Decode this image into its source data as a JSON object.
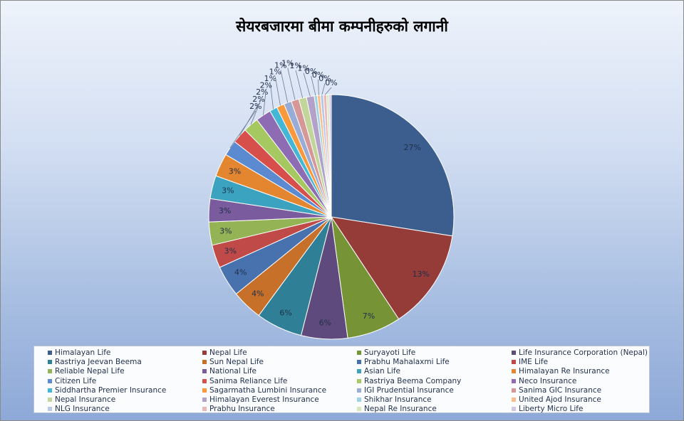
{
  "chart_data": {
    "type": "pie",
    "title": "सेयरबजारमा बीमा कम्पनीहरुको लगानी",
    "legend_position": "bottom",
    "slices": [
      {
        "name": "Himalayan Life",
        "value": 27,
        "label": "27%",
        "color": "#3b5e8e"
      },
      {
        "name": "Nepal Life",
        "value": 13,
        "label": "13%",
        "color": "#953b38"
      },
      {
        "name": "Suryayoti Life",
        "value": 7,
        "label": "7%",
        "color": "#769335"
      },
      {
        "name": "Life Insurance Corporation (Nepal)",
        "value": 6,
        "label": "6%",
        "color": "#5e4a7c"
      },
      {
        "name": "Rastriya Jeevan Beema",
        "value": 6,
        "label": "6%",
        "color": "#2f8097"
      },
      {
        "name": "Sun Nepal Life",
        "value": 4,
        "label": "4%",
        "color": "#c6702a"
      },
      {
        "name": "Prabhu Mahalaxmi Life",
        "value": 4,
        "label": "4%",
        "color": "#4872ae"
      },
      {
        "name": "IME Life",
        "value": 3,
        "label": "3%",
        "color": "#c04a47"
      },
      {
        "name": "Reliable Nepal Life",
        "value": 3,
        "label": "3%",
        "color": "#94b354"
      },
      {
        "name": "National Life",
        "value": 3,
        "label": "3%",
        "color": "#7a5c9e"
      },
      {
        "name": "Asian Life",
        "value": 3,
        "label": "3%",
        "color": "#3ba3bf"
      },
      {
        "name": "Himalayan Re Insurance",
        "value": 3,
        "label": "3%",
        "color": "#e4862f"
      },
      {
        "name": "Citizen Life",
        "value": 2,
        "label": "2%",
        "color": "#5c8ad0"
      },
      {
        "name": "Sanima Reliance Life",
        "value": 2,
        "label": "2%",
        "color": "#d64f4b"
      },
      {
        "name": "Rastriya Beema Company",
        "value": 2,
        "label": "2%",
        "color": "#a6c860"
      },
      {
        "name": "Neco Insurance",
        "value": 2,
        "label": "2%",
        "color": "#8d6cb4"
      },
      {
        "name": "Siddhartha Premier Insurance",
        "value": 1,
        "label": "1%",
        "color": "#43b7d5"
      },
      {
        "name": "Sagarmatha Lumbini Insurance",
        "value": 1,
        "label": "1%",
        "color": "#f89a3c"
      },
      {
        "name": "IGI Prudential Insurance",
        "value": 1,
        "label": "1%",
        "color": "#98acd5"
      },
      {
        "name": "Sanima GIC Insurance",
        "value": 1,
        "label": "1%",
        "color": "#d69897"
      },
      {
        "name": "Nepal Insurance",
        "value": 1,
        "label": "1%",
        "color": "#c2d69b"
      },
      {
        "name": "Himalayan Everest Insurance",
        "value": 1,
        "label": "1%",
        "color": "#b2a2c9"
      },
      {
        "name": "Shikhar Insurance",
        "value": 0.4,
        "label": "0%",
        "color": "#9fd2e3"
      },
      {
        "name": "United Ajod Insurance",
        "value": 0.4,
        "label": "0%",
        "color": "#fbbd8d"
      },
      {
        "name": "NLG Insurance",
        "value": 0.4,
        "label": "0%",
        "color": "#b8c8e6"
      },
      {
        "name": "Prabhu Insurance",
        "value": 0.4,
        "label": "0%",
        "color": "#eab8b7"
      },
      {
        "name": "Nepal Re Insurance",
        "value": 0.3,
        "label": "",
        "color": "#d8e6bd"
      },
      {
        "name": "Liberty Micro Life",
        "value": 0.3,
        "label": "",
        "color": "#d3c7e2"
      }
    ]
  }
}
